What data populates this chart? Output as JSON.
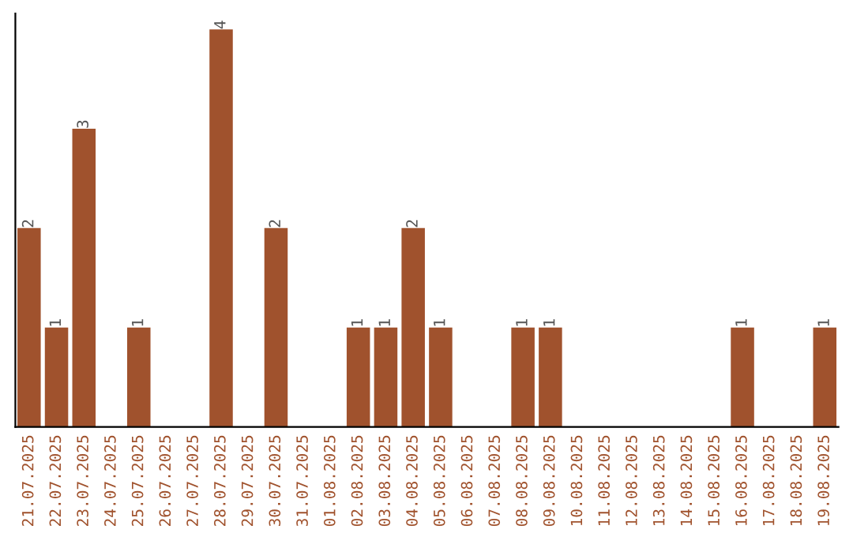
{
  "chart_data": {
    "type": "bar",
    "categories": [
      "21.07.2025",
      "22.07.2025",
      "23.07.2025",
      "24.07.2025",
      "25.07.2025",
      "26.07.2025",
      "27.07.2025",
      "28.07.2025",
      "29.07.2025",
      "30.07.2025",
      "31.07.2025",
      "01.08.2025",
      "02.08.2025",
      "03.08.2025",
      "04.08.2025",
      "05.08.2025",
      "06.08.2025",
      "07.08.2025",
      "08.08.2025",
      "09.08.2025",
      "10.08.2025",
      "11.08.2025",
      "12.08.2025",
      "13.08.2025",
      "14.08.2025",
      "15.08.2025",
      "16.08.2025",
      "17.08.2025",
      "18.08.2025",
      "19.08.2025"
    ],
    "values": [
      2,
      1,
      3,
      0,
      1,
      0,
      0,
      4,
      0,
      2,
      0,
      0,
      1,
      1,
      2,
      1,
      0,
      0,
      1,
      1,
      0,
      0,
      0,
      0,
      0,
      0,
      1,
      0,
      0,
      1
    ],
    "value_labels": [
      "2",
      "1",
      "3",
      null,
      "1",
      null,
      null,
      "4",
      null,
      "2",
      null,
      null,
      "1",
      "1",
      "2",
      "1",
      null,
      null,
      "1",
      "1",
      null,
      null,
      null,
      null,
      null,
      null,
      "1",
      null,
      null,
      "1"
    ],
    "color": "#a0522d",
    "tick_labels": "x",
    "grid": false,
    "legend": false
  }
}
